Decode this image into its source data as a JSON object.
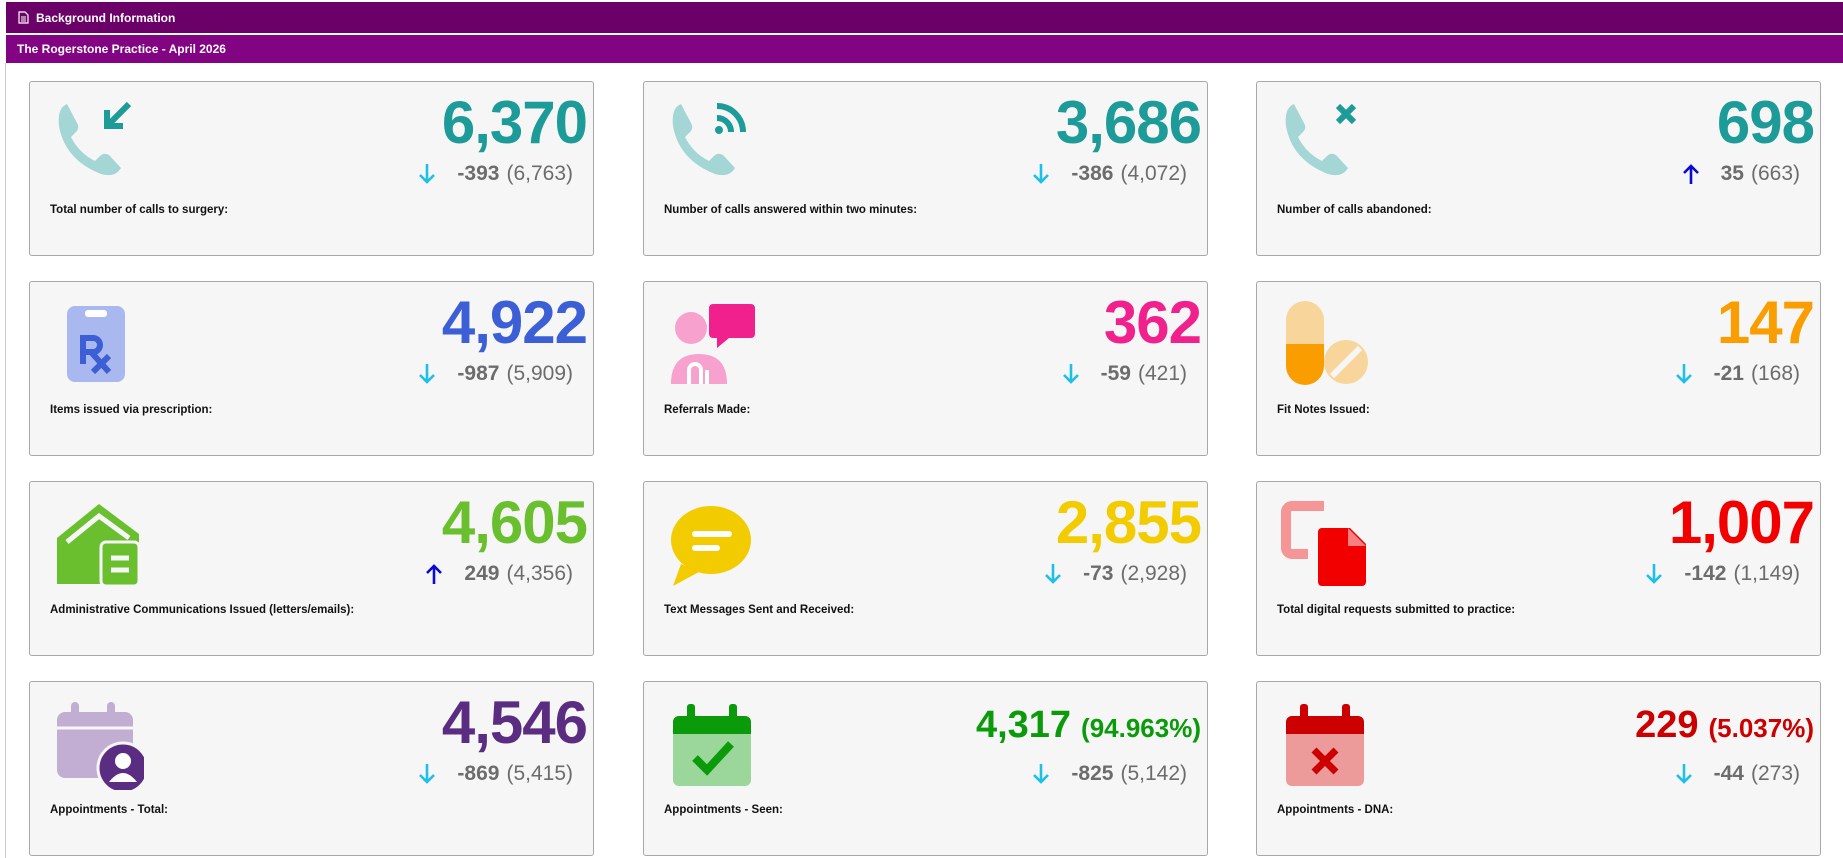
{
  "header": {
    "title": "Background Information"
  },
  "subheader": {
    "title": "The Rogerstone Practice - April 2026"
  },
  "cards": [
    {
      "value": "6,370",
      "change": "-393",
      "previous": "(6,763)",
      "label": "Total number of calls to surgery:"
    },
    {
      "value": "3,686",
      "change": "-386",
      "previous": "(4,072)",
      "label": "Number of calls answered within two minutes:"
    },
    {
      "value": "698",
      "change": "35",
      "previous": "(663)",
      "label": "Number of calls abandoned:"
    },
    {
      "value": "4,922",
      "change": "-987",
      "previous": "(5,909)",
      "label": "Items issued via prescription:"
    },
    {
      "value": "362",
      "change": "-59",
      "previous": "(421)",
      "label": "Referrals Made:"
    },
    {
      "value": "147",
      "change": "-21",
      "previous": "(168)",
      "label": "Fit Notes Issued:"
    },
    {
      "value": "4,605",
      "change": "249",
      "previous": "(4,356)",
      "label": "Administrative Communications Issued (letters/emails):"
    },
    {
      "value": "2,855",
      "change": "-73",
      "previous": "(2,928)",
      "label": "Text Messages Sent and Received:"
    },
    {
      "value": "1,007",
      "change": "-142",
      "previous": "(1,149)",
      "label": "Total digital requests submitted to practice:"
    },
    {
      "value": "4,546",
      "change": "-869",
      "previous": "(5,415)",
      "label": "Appointments - Total:"
    },
    {
      "value": "4,317",
      "percent": "(94.963%)",
      "change": "-825",
      "previous": "(5,142)",
      "label": "Appointments - Seen:"
    },
    {
      "value": "229",
      "percent": "(5.037%)",
      "change": "-44",
      "previous": "(273)",
      "label": "Appointments - DNA:"
    }
  ]
}
